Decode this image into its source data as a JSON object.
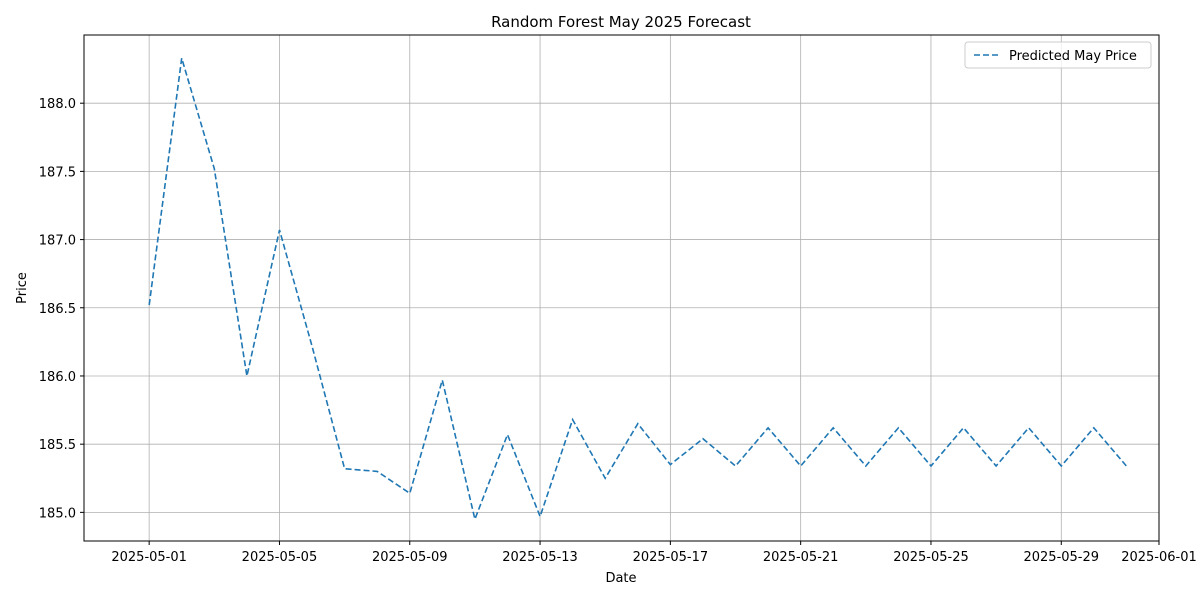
{
  "chart_data": {
    "type": "line",
    "title": "Random Forest May 2025 Forecast",
    "xlabel": "Date",
    "ylabel": "Price",
    "grid": true,
    "legend_placement": "top-right",
    "x_ticks": [
      "2025-05-01",
      "2025-05-05",
      "2025-05-09",
      "2025-05-13",
      "2025-05-17",
      "2025-05-21",
      "2025-05-25",
      "2025-05-29",
      "2025-06-01"
    ],
    "y_ticks": [
      "185.0",
      "185.5",
      "186.0",
      "186.5",
      "187.0",
      "187.5",
      "188.0"
    ],
    "xlim": [
      "2025-04-29",
      "2025-06-01"
    ],
    "ylim": [
      184.79,
      188.5
    ],
    "series": [
      {
        "name": "Predicted May Price",
        "color": "#1f77b4",
        "line_style": "dashed",
        "x": [
          "2025-05-01",
          "2025-05-02",
          "2025-05-03",
          "2025-05-04",
          "2025-05-05",
          "2025-05-06",
          "2025-05-07",
          "2025-05-08",
          "2025-05-09",
          "2025-05-10",
          "2025-05-11",
          "2025-05-12",
          "2025-05-13",
          "2025-05-14",
          "2025-05-15",
          "2025-05-16",
          "2025-05-17",
          "2025-05-18",
          "2025-05-19",
          "2025-05-20",
          "2025-05-21",
          "2025-05-22",
          "2025-05-23",
          "2025-05-24",
          "2025-05-25",
          "2025-05-26",
          "2025-05-27",
          "2025-05-28",
          "2025-05-29",
          "2025-05-30",
          "2025-05-31"
        ],
        "values": [
          186.52,
          188.33,
          187.52,
          186.0,
          187.07,
          186.22,
          185.32,
          185.3,
          185.14,
          185.97,
          184.95,
          185.57,
          184.97,
          185.68,
          185.25,
          185.65,
          185.35,
          185.54,
          185.34,
          185.62,
          185.34,
          185.62,
          185.34,
          185.62,
          185.34,
          185.62,
          185.34,
          185.62,
          185.34,
          185.62,
          185.34
        ]
      }
    ]
  }
}
